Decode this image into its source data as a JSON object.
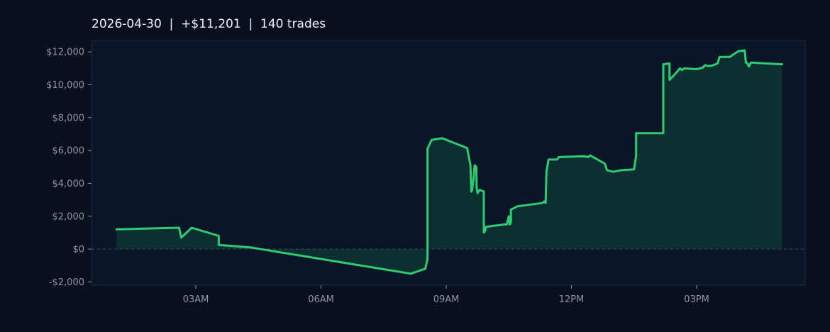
{
  "colors": {
    "background": "#07101c",
    "plot_background": "#0a1627",
    "plot_border": "#1d2b3e",
    "line": "#2ecc71",
    "fill": "#0e2f31",
    "zero_line": "#3b4a5c",
    "tick_text": "#8a97aa",
    "title_text": "#eef2f6"
  },
  "chart_data": {
    "type": "area",
    "title": "2026-04-30  |  +$11,201  |  140 trades",
    "xlabel": "",
    "ylabel": "",
    "x_unit": "hours since midnight, 2026-04-30",
    "xlim": [
      0.5,
      17.6
    ],
    "ylim": [
      -2200,
      12700
    ],
    "grid": false,
    "legend": "none",
    "zero_line": "dashed",
    "x_ticks": [
      {
        "value": 3,
        "label": "03AM"
      },
      {
        "value": 6,
        "label": "06AM"
      },
      {
        "value": 9,
        "label": "09AM"
      },
      {
        "value": 12,
        "label": "12PM"
      },
      {
        "value": 15,
        "label": "03PM"
      }
    ],
    "y_ticks": [
      {
        "value": 12000,
        "label": "$12,000"
      },
      {
        "value": 10000,
        "label": "$10,000"
      },
      {
        "value": 8000,
        "label": "$8,000"
      },
      {
        "value": 6000,
        "label": "$6,000"
      },
      {
        "value": 4000,
        "label": "$4,000"
      },
      {
        "value": 2000,
        "label": "$2,000"
      },
      {
        "value": 0,
        "label": "$0"
      },
      {
        "value": -2000,
        "label": "-$2,000"
      }
    ],
    "series": [
      {
        "name": "",
        "points": [
          [
            1.1,
            1200
          ],
          [
            2.6,
            1300
          ],
          [
            2.65,
            700
          ],
          [
            2.9,
            1300
          ],
          [
            3.55,
            800
          ],
          [
            3.55,
            250
          ],
          [
            4.3,
            100
          ],
          [
            8.15,
            -1500
          ],
          [
            8.5,
            -1200
          ],
          [
            8.55,
            -600
          ],
          [
            8.55,
            6100
          ],
          [
            8.65,
            6650
          ],
          [
            8.9,
            6750
          ],
          [
            9.5,
            6150
          ],
          [
            9.58,
            5100
          ],
          [
            9.6,
            3500
          ],
          [
            9.62,
            3600
          ],
          [
            9.65,
            4200
          ],
          [
            9.68,
            5100
          ],
          [
            9.72,
            5000
          ],
          [
            9.73,
            3700
          ],
          [
            9.75,
            3400
          ],
          [
            9.8,
            3600
          ],
          [
            9.9,
            3500
          ],
          [
            9.9,
            1000
          ],
          [
            9.93,
            1100
          ],
          [
            9.95,
            1350
          ],
          [
            10.1,
            1400
          ],
          [
            10.25,
            1450
          ],
          [
            10.4,
            1500
          ],
          [
            10.45,
            1500
          ],
          [
            10.5,
            2000
          ],
          [
            10.52,
            1500
          ],
          [
            10.55,
            1600
          ],
          [
            10.55,
            2400
          ],
          [
            10.7,
            2600
          ],
          [
            11.3,
            2800
          ],
          [
            11.35,
            2900
          ],
          [
            11.38,
            2800
          ],
          [
            11.4,
            4700
          ],
          [
            11.45,
            5450
          ],
          [
            11.65,
            5450
          ],
          [
            11.7,
            5600
          ],
          [
            12.3,
            5650
          ],
          [
            12.4,
            5600
          ],
          [
            12.45,
            5700
          ],
          [
            12.8,
            5200
          ],
          [
            12.85,
            4800
          ],
          [
            13.0,
            4700
          ],
          [
            13.2,
            4800
          ],
          [
            13.5,
            4850
          ],
          [
            13.55,
            5700
          ],
          [
            13.55,
            7050
          ],
          [
            13.6,
            7050
          ],
          [
            14.2,
            7050
          ],
          [
            14.2,
            11250
          ],
          [
            14.35,
            11300
          ],
          [
            14.35,
            10300
          ],
          [
            14.5,
            10700
          ],
          [
            14.6,
            11000
          ],
          [
            14.65,
            10900
          ],
          [
            14.7,
            11000
          ],
          [
            15.0,
            10950
          ],
          [
            15.15,
            11050
          ],
          [
            15.2,
            11200
          ],
          [
            15.25,
            11150
          ],
          [
            15.35,
            11150
          ],
          [
            15.45,
            11250
          ],
          [
            15.5,
            11300
          ],
          [
            15.55,
            11700
          ],
          [
            15.8,
            11700
          ],
          [
            15.88,
            11850
          ],
          [
            16.0,
            12050
          ],
          [
            16.15,
            12100
          ],
          [
            16.18,
            11350
          ],
          [
            16.22,
            11300
          ],
          [
            16.25,
            11100
          ],
          [
            16.3,
            11350
          ],
          [
            17.05,
            11250
          ]
        ]
      }
    ]
  }
}
